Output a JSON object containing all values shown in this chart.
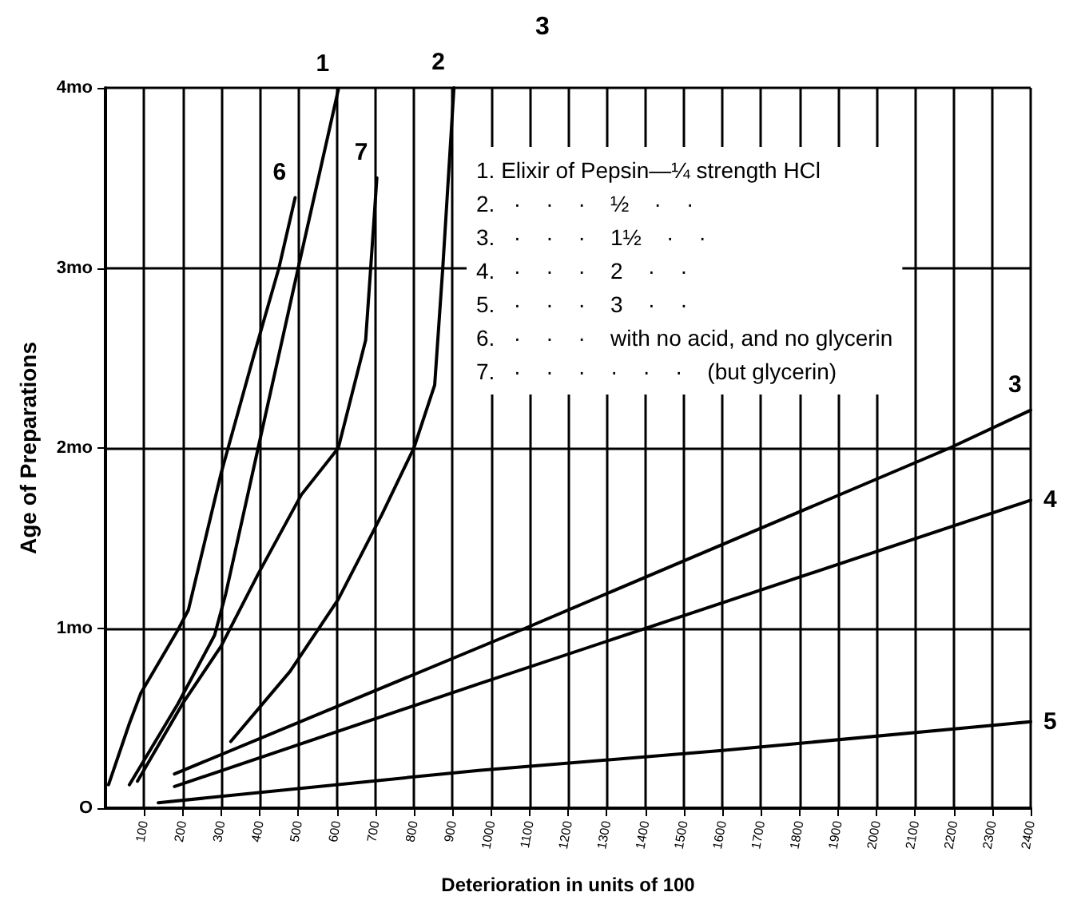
{
  "chart_data": {
    "type": "line",
    "title": "3",
    "xlabel": "Deterioration in units of 100",
    "ylabel": "Age of Preparations",
    "annotations": [
      "1. Elixir of Pepsin—¼ strength HCl",
      "2.   ·    ·    ·    ½    ·    ·",
      "3.   ·    ·    ·    1½    ·    ·",
      "4.   ·    ·    ·    2    ·    ·",
      "5.   ·    ·    ·    3    ·    ·",
      "6.   ·    ·    ·    with no acid, and no glycerin",
      "7.   ·    ·    ·    ·    ·    ·    (but glycerin)"
    ],
    "xlim": [
      0,
      2400
    ],
    "xticks": [
      100,
      200,
      300,
      400,
      500,
      600,
      700,
      800,
      900,
      1000,
      1100,
      1200,
      1300,
      1400,
      1500,
      1600,
      1700,
      1800,
      1900,
      2000,
      2100,
      2200,
      2300,
      2400
    ],
    "ylim": [
      0,
      4
    ],
    "yticks": [
      {
        "value": 0,
        "label": "O"
      },
      {
        "value": 1,
        "label": "1mo"
      },
      {
        "value": 2,
        "label": "2mo"
      },
      {
        "value": 3,
        "label": "3mo"
      },
      {
        "value": 4,
        "label": "4mo"
      }
    ],
    "grid": true,
    "legend": false,
    "marker": "none",
    "line_style": "solid",
    "series": [
      {
        "name": "6",
        "color": "#000000",
        "x": [
          8,
          62,
          92,
          188,
          215,
          300,
          383,
          450,
          492
        ],
        "values": [
          0.13,
          0.47,
          0.64,
          0.99,
          1.1,
          1.86,
          2.5,
          3.0,
          3.39
        ]
      },
      {
        "name": "1",
        "color": "#000000",
        "x": [
          62,
          188,
          283,
          312,
          396,
          500,
          604
        ],
        "values": [
          0.13,
          0.58,
          0.96,
          1.19,
          2.0,
          3.0,
          3.99
        ]
      },
      {
        "name": "7",
        "color": "#000000",
        "x": [
          83,
          200,
          300,
          396,
          508,
          604,
          675,
          688,
          704
        ],
        "values": [
          0.15,
          0.58,
          0.9,
          1.3,
          1.74,
          2.0,
          2.6,
          3.0,
          3.5
        ]
      },
      {
        "name": "2",
        "color": "#000000",
        "x": [
          325,
          479,
          604,
          717,
          800,
          854,
          875,
          904
        ],
        "values": [
          0.37,
          0.76,
          1.16,
          1.63,
          2.0,
          2.35,
          3.0,
          4.0
        ]
      },
      {
        "name": "3",
        "color": "#000000",
        "x": [
          179,
          1090,
          2190,
          2400
        ],
        "values": [
          0.19,
          1.0,
          2.0,
          2.21
        ]
      },
      {
        "name": "4",
        "color": "#000000",
        "x": [
          179,
          968,
          2400
        ],
        "values": [
          0.12,
          0.69,
          1.71
        ]
      },
      {
        "name": "5",
        "color": "#000000",
        "x": [
          137,
          968,
          1600,
          2400
        ],
        "values": [
          0.03,
          0.21,
          0.32,
          0.48
        ]
      }
    ]
  }
}
